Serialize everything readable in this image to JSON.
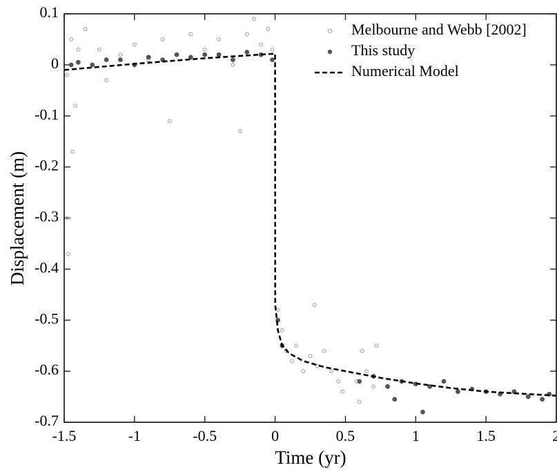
{
  "chart_data": {
    "type": "scatter",
    "xlabel": "Time (yr)",
    "ylabel": "Displacement (m)",
    "xlim": [
      -1.5,
      2
    ],
    "xticks": [
      -1.5,
      -1,
      -0.5,
      0,
      0.5,
      1,
      1.5,
      2
    ],
    "ylim": [
      -0.7,
      0.1
    ],
    "yticks": [
      -0.7,
      -0.6,
      -0.5,
      -0.4,
      -0.3,
      -0.2,
      -0.1,
      0,
      0.1
    ],
    "legend": "upper right",
    "series": [
      {
        "name": "Melbourne and Webb [2002]",
        "color": "#aaaaaa",
        "marker": "open",
        "x": [
          -1.48,
          -1.45,
          -1.42,
          -1.4,
          -1.35,
          -1.3,
          -1.25,
          -1.2,
          -1.1,
          -1.0,
          -0.9,
          -0.8,
          -0.75,
          -0.7,
          -0.6,
          -0.5,
          -0.4,
          -0.3,
          -0.25,
          -0.2,
          -0.15,
          -0.1,
          -0.05,
          -0.02,
          0.02,
          0.05,
          0.08,
          0.12,
          0.15,
          0.2,
          0.25,
          0.3,
          0.28,
          0.35,
          0.4,
          0.45,
          0.48,
          0.58,
          0.6,
          0.62,
          0.65,
          0.7,
          0.72,
          -1.48,
          -1.47,
          -1.44
        ],
        "values": [
          -0.02,
          0.05,
          -0.08,
          0.03,
          0.07,
          0.0,
          0.03,
          -0.03,
          0.02,
          0.04,
          0.01,
          0.05,
          -0.11,
          0.02,
          0.06,
          0.03,
          0.05,
          0.0,
          -0.13,
          0.06,
          0.09,
          0.04,
          0.07,
          0.03,
          -0.48,
          -0.52,
          -0.56,
          -0.58,
          -0.55,
          -0.6,
          -0.57,
          -0.59,
          -0.47,
          -0.56,
          -0.6,
          -0.62,
          -0.64,
          -0.62,
          -0.66,
          -0.56,
          -0.6,
          -0.63,
          -0.55,
          -0.3,
          -0.37,
          -0.17
        ]
      },
      {
        "name": "This study",
        "color": "#555555",
        "marker": "filled",
        "x": [
          -1.45,
          -1.4,
          -1.3,
          -1.2,
          -1.1,
          -1.0,
          -0.9,
          -0.8,
          -0.7,
          -0.6,
          -0.5,
          -0.4,
          -0.3,
          -0.2,
          -0.1,
          -0.02,
          0.02,
          0.05,
          0.6,
          0.7,
          0.8,
          0.9,
          1.0,
          1.1,
          1.2,
          1.3,
          1.4,
          1.5,
          1.6,
          1.7,
          1.8,
          1.9,
          1.95,
          1.05,
          0.85
        ],
        "values": [
          0.0,
          0.005,
          0.0,
          0.01,
          0.01,
          0.0,
          0.015,
          0.01,
          0.02,
          0.015,
          0.02,
          0.02,
          0.01,
          0.025,
          0.02,
          0.01,
          -0.5,
          -0.55,
          -0.62,
          -0.61,
          -0.63,
          -0.62,
          -0.625,
          -0.63,
          -0.62,
          -0.64,
          -0.635,
          -0.64,
          -0.645,
          -0.64,
          -0.65,
          -0.655,
          -0.645,
          -0.68,
          -0.655
        ]
      },
      {
        "name": "Numerical Model",
        "color": "#000000",
        "marker": "dashed-line",
        "x": [
          -1.5,
          -1.0,
          -0.5,
          0,
          0.001,
          0.02,
          0.05,
          0.1,
          0.2,
          0.35,
          0.5,
          0.75,
          1.0,
          1.25,
          1.5,
          1.75,
          2.0
        ],
        "values": [
          -0.01,
          0.002,
          0.013,
          0.022,
          -0.47,
          -0.52,
          -0.55,
          -0.565,
          -0.58,
          -0.592,
          -0.6,
          -0.613,
          -0.624,
          -0.633,
          -0.64,
          -0.644,
          -0.648
        ]
      }
    ]
  }
}
